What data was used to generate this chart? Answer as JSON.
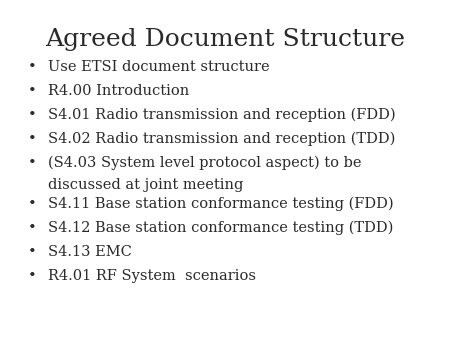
{
  "title": "Agreed Document Structure",
  "title_fontsize": 18,
  "title_font": "serif",
  "background_color": "#ffffff",
  "text_color": "#2a2a2a",
  "bullet_items": [
    "Use ETSI document structure",
    "R4.00 Introduction",
    "S4.01 Radio transmission and reception (FDD)",
    "S4.02 Radio transmission and reception (TDD)",
    "(S4.03 System level protocol aspect) to be\ndiscussed at joint meeting",
    "S4.11 Base station conformance testing (FDD)",
    "S4.12 Base station conformance testing (TDD)",
    "S4.13 EMC",
    "R4.01 RF System  scenarios"
  ],
  "bullet_fontsize": 10.5,
  "bullet_font": "serif",
  "bullet_char": "•"
}
